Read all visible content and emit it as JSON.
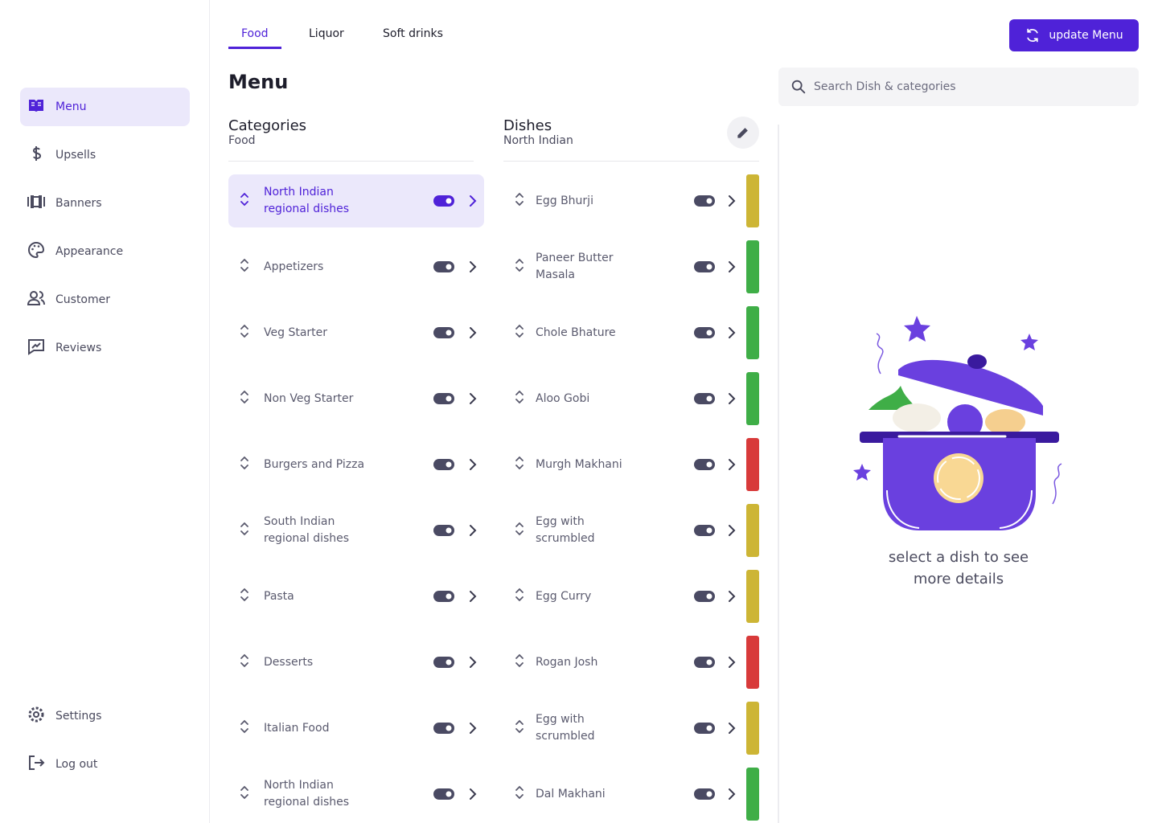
{
  "sidebar": {
    "nav": [
      "Menu",
      "Upsells",
      "Banners",
      "Appearance",
      "Customer",
      "Reviews"
    ],
    "footer": [
      "Settings",
      "Log out"
    ]
  },
  "tabs": [
    "Food",
    "Liquor",
    "Soft drinks"
  ],
  "update_button": "update Menu",
  "title": "Menu",
  "search_placeholder": "Search Dish & categories",
  "categories": {
    "title": "Categories",
    "subtitle": "Food",
    "items": [
      "North Indian regional dishes",
      "Appetizers",
      "Veg Starter",
      "Non Veg Starter",
      "Burgers and Pizza",
      "South Indian regional dishes",
      "Pasta",
      "Desserts",
      "Italian Food",
      "North Indian regional dishes"
    ]
  },
  "dishes": {
    "title": "Dishes",
    "subtitle": "North Indian",
    "items": [
      {
        "name": "Egg Bhurji",
        "color": "#cdb535"
      },
      {
        "name": "Paneer Butter Masala",
        "color": "#3fae47"
      },
      {
        "name": "Chole Bhature",
        "color": "#3fae47"
      },
      {
        "name": "Aloo Gobi",
        "color": "#3fae47"
      },
      {
        "name": "Murgh Makhani",
        "color": "#d83a3a"
      },
      {
        "name": "Egg with scrumbled",
        "color": "#cdb535"
      },
      {
        "name": "Egg Curry",
        "color": "#cdb535"
      },
      {
        "name": "Rogan Josh",
        "color": "#d83a3a"
      },
      {
        "name": "Egg with scrumbled",
        "color": "#cdb535"
      },
      {
        "name": "Dal Makhani",
        "color": "#3fae47"
      }
    ]
  },
  "empty_state": "select a dish to see more details"
}
